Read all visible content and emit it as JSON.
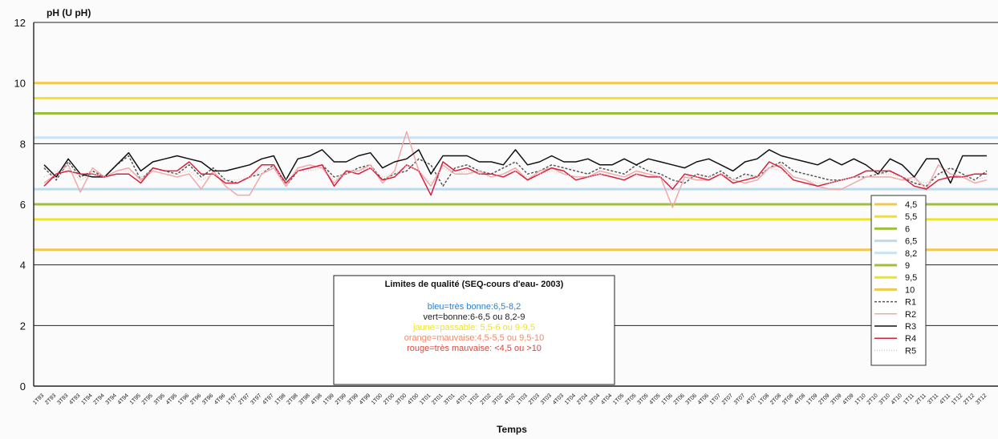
{
  "chart_data": {
    "type": "line",
    "ylabel": "pH (U pH)",
    "xlabel": "Temps",
    "ylim": [
      0,
      12
    ],
    "yticks": [
      0,
      2,
      4,
      6,
      8,
      10,
      12
    ],
    "grid": "horizontal lines at 2, 4, 8, 12",
    "categories": [
      "1T93",
      "2T93",
      "3T93",
      "4T93",
      "1T94",
      "2T94",
      "3T94",
      "4T94",
      "1T95",
      "2T95",
      "3T95",
      "4T95",
      "1T96",
      "2T96",
      "3T96",
      "4T96",
      "1T97",
      "2T97",
      "3T97",
      "4T97",
      "1T98",
      "2T98",
      "3T98",
      "4T98",
      "1T99",
      "2T99",
      "3T99",
      "4T99",
      "1T00",
      "2T00",
      "3T00",
      "4T00",
      "1T01",
      "2T01",
      "3T01",
      "4T01",
      "1T02",
      "2T02",
      "3T02",
      "4T02",
      "1T03",
      "2T03",
      "3T03",
      "4T03",
      "1T04",
      "2T04",
      "3T04",
      "4T04",
      "1T05",
      "2T05",
      "3T05",
      "4T05",
      "1T06",
      "2T06",
      "3T06",
      "4T06",
      "1T07",
      "2T07",
      "3T07",
      "4T07",
      "1T08",
      "2T08",
      "3T08",
      "4T08",
      "1T09",
      "2T09",
      "3T09",
      "4T09",
      "1T10",
      "2T10",
      "3T10",
      "4T10",
      "1T11",
      "2T11",
      "3T11",
      "4T11",
      "1T12",
      "2T12",
      "3T12"
    ],
    "thresholds": [
      {
        "name": "4,5",
        "value": 4.5,
        "color": "#f2c94c"
      },
      {
        "name": "5,5",
        "value": 5.5,
        "color": "#f0e22a"
      },
      {
        "name": "6",
        "value": 6,
        "color": "#9cbf3c"
      },
      {
        "name": "6,5",
        "value": 6.5,
        "color": "#b9dbf0"
      },
      {
        "name": "8,2",
        "value": 8.2,
        "color": "#c7e3f4"
      },
      {
        "name": "9",
        "value": 9,
        "color": "#9cbf3c"
      },
      {
        "name": "9,5",
        "value": 9.5,
        "color": "#f0e22a"
      },
      {
        "name": "10",
        "value": 10,
        "color": "#f2c94c"
      }
    ],
    "series": [
      {
        "name": "R1",
        "color": "#555555",
        "dash": "3,2",
        "values": [
          7.2,
          6.8,
          7.4,
          6.9,
          7.1,
          6.9,
          7.3,
          7.6,
          6.8,
          7.2,
          7.1,
          7.0,
          7.3,
          6.9,
          7.2,
          6.8,
          6.7,
          6.9,
          7.0,
          7.3,
          6.6,
          7.1,
          7.2,
          7.3,
          6.9,
          7.0,
          7.2,
          7.3,
          6.8,
          7.0,
          7.1,
          7.5,
          7.3,
          6.6,
          7.2,
          7.3,
          7.1,
          7.0,
          7.2,
          7.4,
          7.0,
          7.1,
          7.3,
          7.2,
          7.1,
          7.0,
          7.2,
          7.1,
          7.0,
          7.3,
          7.1,
          7.0,
          6.8,
          6.7,
          7.0,
          6.9,
          7.1,
          6.8,
          7.0,
          6.9,
          7.2,
          7.4,
          7.1,
          7.0,
          6.9,
          6.8,
          6.8,
          6.9,
          6.9,
          7.0,
          7.1,
          6.9,
          6.7,
          6.6,
          7.0,
          7.2,
          7.0,
          6.8,
          7.1
        ]
      },
      {
        "name": "R2",
        "color": "#f0a8a8",
        "dash": "",
        "values": [
          6.7,
          7.0,
          7.3,
          6.4,
          7.2,
          6.9,
          7.1,
          7.2,
          6.8,
          7.1,
          7.0,
          6.9,
          7.0,
          6.5,
          7.1,
          6.6,
          6.3,
          6.3,
          7.0,
          7.2,
          6.6,
          7.2,
          7.3,
          7.2,
          6.7,
          7.1,
          7.1,
          7.3,
          6.7,
          7.1,
          8.4,
          7.1,
          6.6,
          7.3,
          7.0,
          7.0,
          7.1,
          6.9,
          7.0,
          7.2,
          6.8,
          7.1,
          7.2,
          7.0,
          6.9,
          6.9,
          7.1,
          7.0,
          6.9,
          7.1,
          7.0,
          6.9,
          5.9,
          6.9,
          6.8,
          6.8,
          7.0,
          6.8,
          6.7,
          6.8,
          7.2,
          7.3,
          6.9,
          6.8,
          6.6,
          6.5,
          6.5,
          6.7,
          6.9,
          6.9,
          6.9,
          6.8,
          6.9,
          6.5,
          7.3,
          7.0,
          6.9,
          6.7,
          6.8
        ]
      },
      {
        "name": "R3",
        "color": "#111111",
        "dash": "",
        "values": [
          7.3,
          6.9,
          7.5,
          7.0,
          6.9,
          6.9,
          7.3,
          7.7,
          7.1,
          7.4,
          7.5,
          7.6,
          7.5,
          7.4,
          7.1,
          7.1,
          7.2,
          7.3,
          7.5,
          7.6,
          6.8,
          7.5,
          7.6,
          7.8,
          7.4,
          7.4,
          7.6,
          7.7,
          7.2,
          7.4,
          7.5,
          7.8,
          7.0,
          7.6,
          7.6,
          7.6,
          7.4,
          7.4,
          7.3,
          7.8,
          7.3,
          7.4,
          7.6,
          7.4,
          7.4,
          7.5,
          7.3,
          7.3,
          7.5,
          7.3,
          7.5,
          7.4,
          7.3,
          7.2,
          7.4,
          7.5,
          7.3,
          7.1,
          7.4,
          7.5,
          7.8,
          7.6,
          7.5,
          7.4,
          7.3,
          7.5,
          7.3,
          7.5,
          7.3,
          7.0,
          7.5,
          7.3,
          6.9,
          7.5,
          7.5,
          6.7,
          7.6,
          7.6,
          7.6
        ]
      },
      {
        "name": "R4",
        "color": "#d8203e",
        "dash": "",
        "values": [
          6.6,
          7.0,
          7.1,
          7.0,
          7.0,
          6.9,
          7.0,
          7.0,
          6.7,
          7.2,
          7.1,
          7.1,
          7.4,
          7.0,
          7.0,
          6.7,
          6.7,
          6.9,
          7.3,
          7.3,
          6.7,
          7.1,
          7.2,
          7.3,
          6.6,
          7.1,
          7.0,
          7.2,
          6.8,
          6.9,
          7.3,
          7.1,
          6.3,
          7.4,
          7.1,
          7.2,
          7.0,
          7.0,
          6.9,
          7.1,
          6.8,
          7.0,
          7.2,
          7.1,
          6.8,
          6.9,
          7.0,
          6.9,
          6.8,
          7.0,
          6.9,
          6.9,
          6.5,
          7.0,
          6.9,
          6.8,
          7.0,
          6.7,
          6.8,
          6.9,
          7.4,
          7.2,
          6.8,
          6.7,
          6.6,
          6.7,
          6.8,
          6.9,
          7.1,
          7.1,
          7.1,
          6.9,
          6.6,
          6.5,
          6.8,
          6.9,
          6.9,
          7.0,
          7.0
        ]
      },
      {
        "name": "R5",
        "color": "#d9c8c8",
        "dash": "1,2",
        "values": [
          6.9,
          7.1,
          7.2,
          6.8,
          7.0,
          6.9,
          7.1,
          7.1,
          6.9,
          7.1,
          7.0,
          7.0,
          7.1,
          6.8,
          7.0,
          6.8,
          6.8,
          6.9,
          7.1,
          7.2,
          6.8,
          7.1,
          7.1,
          7.2,
          6.8,
          7.0,
          7.1,
          7.2,
          6.9,
          7.0,
          7.3,
          7.1,
          6.7,
          7.2,
          7.0,
          7.1,
          7.0,
          6.9,
          7.0,
          7.1,
          6.9,
          7.0,
          7.1,
          7.0,
          6.9,
          6.9,
          7.0,
          7.0,
          6.9,
          7.0,
          7.0,
          6.9,
          6.6,
          6.9,
          6.9,
          6.9,
          7.0,
          6.8,
          6.9,
          6.9,
          7.2,
          7.1,
          6.9,
          6.8,
          6.7,
          6.7,
          6.8,
          6.9,
          6.9,
          7.0,
          7.0,
          6.9,
          6.8,
          6.7,
          7.0,
          7.0,
          6.9,
          6.8,
          6.9
        ]
      }
    ],
    "legend": "right",
    "annotation": {
      "title": "Limites de qualité (SEQ-cours d'eau- 2003)",
      "lines": [
        {
          "text": "bleu=très bonne:6,5-8,2",
          "color": "#2a7fd0"
        },
        {
          "text": "vert=bonne:6-6,5 ou 8,2-9",
          "color": "#222222"
        },
        {
          "text": "jaune=passable: 5,5-6 ou 9-9,5",
          "color": "#f1e02e"
        },
        {
          "text": "orange=mauvaise:4,5-5,5 ou 9,5-10",
          "color": "#f08a6a"
        },
        {
          "text": "rouge=très mauvaise: <4,5 ou >10",
          "color": "#e0453a"
        }
      ]
    }
  }
}
